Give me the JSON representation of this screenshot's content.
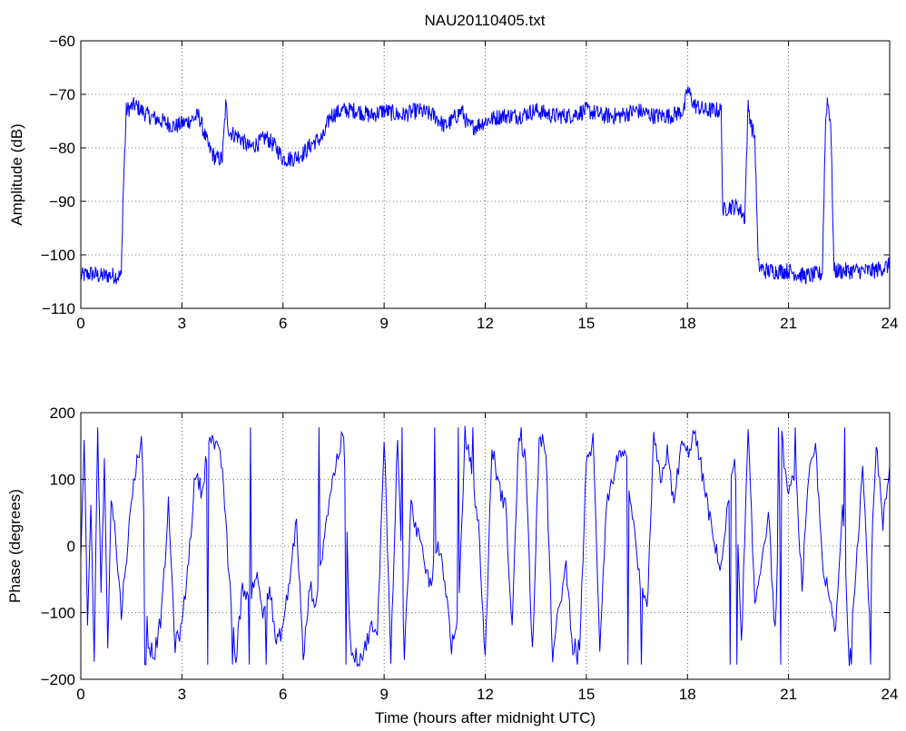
{
  "figure": {
    "title": "NAU20110405.txt",
    "line_color": "#0000ff",
    "background": "#ffffff",
    "axes_color": "#000000"
  },
  "chart_data": [
    {
      "type": "line",
      "title": "NAU20110405.txt",
      "xlabel": "",
      "ylabel": "Amplitude (dB)",
      "xlim": [
        0,
        24
      ],
      "ylim": [
        -110,
        -60
      ],
      "xticks": [
        0,
        3,
        6,
        9,
        12,
        15,
        18,
        21,
        24
      ],
      "yticks": [
        -110,
        -100,
        -90,
        -80,
        -70,
        -60
      ],
      "grid": true,
      "legend": "none",
      "color": "#0000ff",
      "series": [
        {
          "x": [
            0,
            0.3,
            0.6,
            0.9,
            1.2,
            1.25,
            1.35,
            1.6,
            2.0,
            2.4,
            2.8,
            3.2,
            3.5,
            3.6,
            3.8,
            4.0,
            4.2,
            4.3,
            4.4,
            4.7,
            5.0,
            5.3,
            5.5,
            5.8,
            6.0,
            6.3,
            6.6,
            6.9,
            7.2,
            7.3,
            7.4,
            7.8,
            8.2,
            8.6,
            9.0,
            9.5,
            10.0,
            10.5,
            10.8,
            11.0,
            11.3,
            11.5,
            11.7,
            12.0,
            12.5,
            13.0,
            13.5,
            14.0,
            14.5,
            15.0,
            15.5,
            16.0,
            16.5,
            17.0,
            17.5,
            17.9,
            18.0,
            18.2,
            18.5,
            18.8,
            19.0,
            19.05,
            19.2,
            19.5,
            19.7,
            19.8,
            19.9,
            20.0,
            20.1,
            20.3,
            20.6,
            21.0,
            21.5,
            22.0,
            22.1,
            22.15,
            22.25,
            22.35,
            22.5,
            23.0,
            23.5,
            24.0
          ],
          "y": [
            -104,
            -103.5,
            -104,
            -103.8,
            -104,
            -90,
            -73,
            -72,
            -74,
            -75,
            -76,
            -75,
            -74,
            -76,
            -80,
            -82,
            -82,
            -72,
            -77,
            -78,
            -80,
            -79,
            -78,
            -80,
            -82,
            -82,
            -81,
            -79,
            -78,
            -76,
            -74,
            -73,
            -73,
            -74,
            -73,
            -74,
            -73,
            -74,
            -76,
            -75,
            -73,
            -76,
            -76,
            -75,
            -74,
            -74,
            -73,
            -74,
            -74,
            -73,
            -74,
            -74,
            -73,
            -74,
            -74,
            -73,
            -69,
            -72,
            -73,
            -73,
            -73,
            -92,
            -91,
            -91,
            -93,
            -72,
            -76,
            -78,
            -102,
            -103,
            -103,
            -103,
            -104,
            -103.5,
            -75,
            -71,
            -75,
            -103,
            -103,
            -103,
            -103,
            -102
          ]
        }
      ]
    },
    {
      "type": "line",
      "title": "",
      "xlabel": "Time (hours after midnight UTC)",
      "ylabel": "Phase (degrees)",
      "xlim": [
        0,
        24
      ],
      "ylim": [
        -200,
        200
      ],
      "xticks": [
        0,
        3,
        6,
        9,
        12,
        15,
        18,
        21,
        24
      ],
      "yticks": [
        -200,
        -100,
        0,
        100,
        200
      ],
      "grid": true,
      "legend": "none",
      "color": "#0000ff",
      "series": [
        {
          "x": [
            0,
            0.1,
            0.2,
            0.3,
            0.4,
            0.5,
            0.6,
            0.7,
            0.8,
            0.9,
            1.0,
            1.2,
            1.4,
            1.6,
            1.8,
            2.0,
            2.2,
            2.4,
            2.6,
            2.8,
            3.0,
            3.2,
            3.4,
            3.6,
            3.8,
            4.0,
            4.2,
            4.4,
            4.6,
            4.8,
            5.0,
            5.2,
            5.4,
            5.6,
            5.8,
            6.0,
            6.2,
            6.4,
            6.6,
            6.8,
            7.0,
            7.2,
            7.4,
            7.6,
            7.8,
            8.0,
            8.2,
            8.4,
            8.6,
            8.8,
            9.0,
            9.2,
            9.4,
            9.6,
            9.8,
            10.0,
            10.2,
            10.4,
            10.6,
            10.8,
            11.0,
            11.2,
            11.4,
            11.6,
            11.8,
            12.0,
            12.2,
            12.4,
            12.6,
            12.8,
            13.0,
            13.2,
            13.4,
            13.6,
            13.8,
            14.0,
            14.2,
            14.4,
            14.6,
            14.8,
            15.0,
            15.2,
            15.4,
            15.6,
            15.8,
            16.0,
            16.2,
            16.4,
            16.6,
            16.8,
            17.0,
            17.2,
            17.4,
            17.6,
            17.8,
            18.0,
            18.2,
            18.4,
            18.6,
            18.8,
            19.0,
            19.2,
            19.4,
            19.6,
            19.8,
            20.0,
            20.2,
            20.4,
            20.6,
            20.8,
            21.0,
            21.2,
            21.4,
            21.6,
            21.8,
            22.0,
            22.2,
            22.4,
            22.6,
            22.8,
            23.0,
            23.2,
            23.4,
            23.6,
            23.8,
            24.0
          ],
          "y": [
            -20,
            150,
            -120,
            60,
            -170,
            170,
            -60,
            120,
            -150,
            80,
            30,
            -100,
            10,
            110,
            160,
            -150,
            -160,
            -100,
            60,
            -150,
            -120,
            -20,
            110,
            80,
            170,
            150,
            120,
            -50,
            -170,
            -60,
            -80,
            -40,
            -100,
            -60,
            -150,
            -120,
            -50,
            40,
            -170,
            -60,
            -90,
            10,
            80,
            130,
            170,
            -150,
            -170,
            -160,
            -120,
            -140,
            170,
            -170,
            170,
            -170,
            60,
            20,
            -30,
            -60,
            10,
            -50,
            -150,
            -120,
            170,
            110,
            30,
            -170,
            150,
            90,
            60,
            -120,
            170,
            130,
            -160,
            170,
            140,
            -170,
            -90,
            -30,
            -150,
            -150,
            120,
            160,
            -150,
            70,
            100,
            150,
            120,
            30,
            -60,
            -100,
            160,
            100,
            140,
            60,
            150,
            140,
            170,
            120,
            60,
            0,
            -30,
            60,
            130,
            -150,
            170,
            -90,
            -20,
            50,
            -130,
            160,
            70,
            120,
            -60,
            100,
            150,
            -20,
            -80,
            -130,
            60,
            -170,
            -30,
            120,
            -100,
            160,
            30,
            120
          ]
        }
      ]
    }
  ]
}
